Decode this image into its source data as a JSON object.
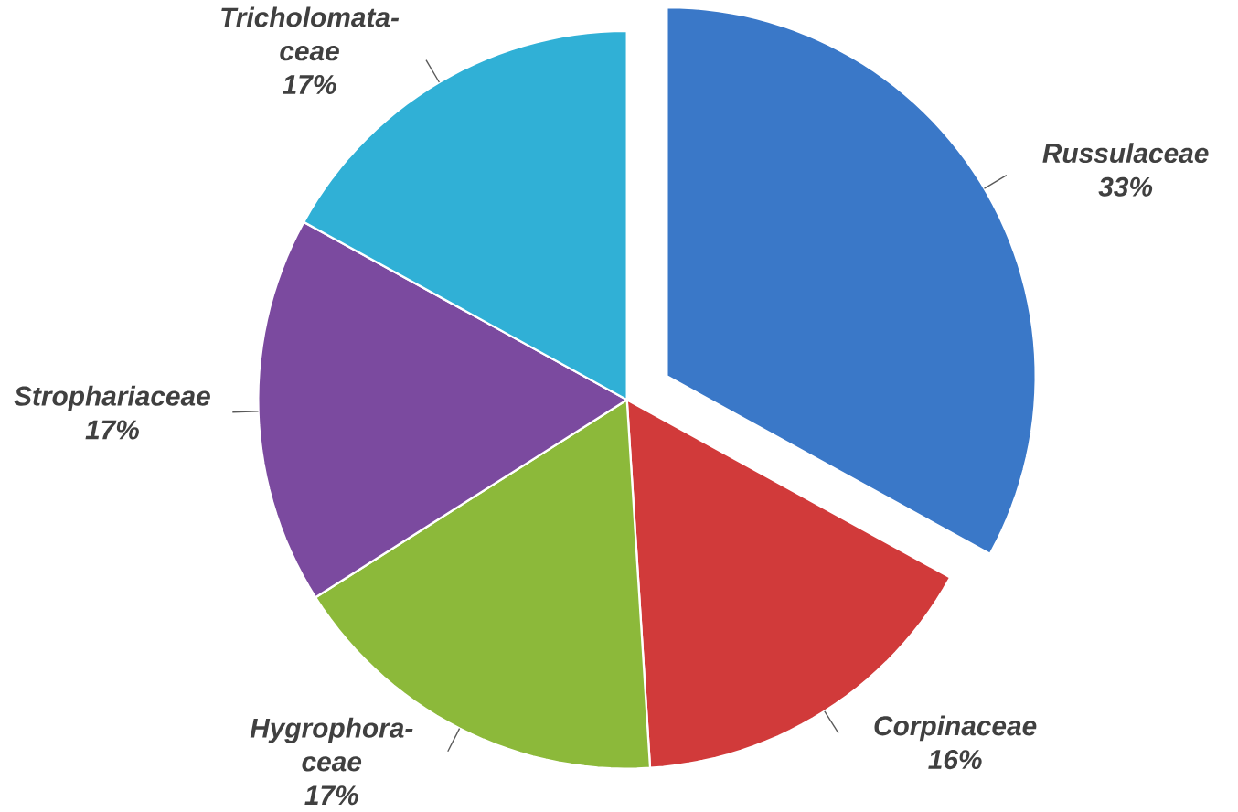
{
  "chart_data": {
    "type": "pie",
    "categories": [
      "Russulaceae",
      "Corpinaceae",
      "Hygrophora-ceae",
      "Strophariaceae",
      "Tricholomata-ceae"
    ],
    "values": [
      33,
      16,
      17,
      17,
      17
    ],
    "value_labels": [
      "33%",
      "16%",
      "17%",
      "17%",
      "17%"
    ],
    "colors": [
      "#3a78c8",
      "#d13a3a",
      "#8cb93a",
      "#7b4a9f",
      "#30b0d6"
    ]
  }
}
